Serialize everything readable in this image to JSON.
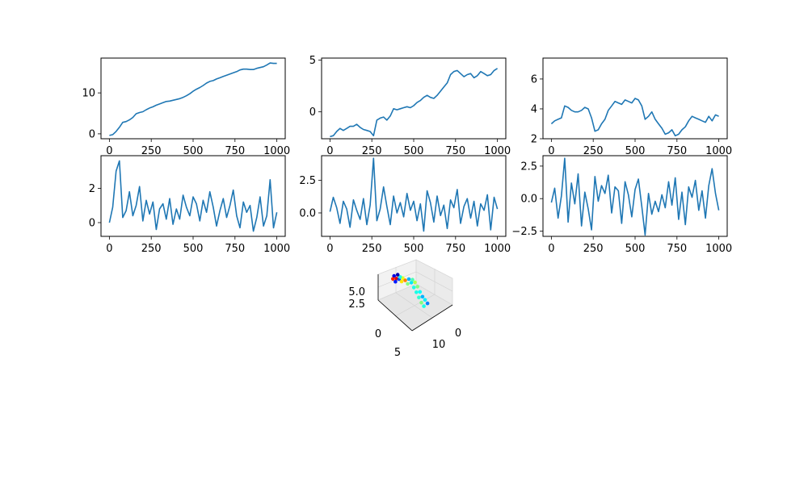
{
  "figure": {
    "background": "#ffffff",
    "line_color": "#1f77b4"
  },
  "chart_data": [
    {
      "type": "line",
      "name": "",
      "color": "#1f77b4",
      "grid": false,
      "xlim": [
        -50,
        1050
      ],
      "ylim": [
        -1.2,
        18.5
      ],
      "x_ticks": [
        0,
        250,
        500,
        750,
        1000
      ],
      "y_ticks": [
        0,
        10
      ],
      "x_tick_labels": [
        "0",
        "250",
        "500",
        "750",
        "1000"
      ],
      "y_tick_labels": [
        "0",
        "10"
      ],
      "x": [
        0,
        20,
        40,
        60,
        80,
        100,
        120,
        140,
        160,
        180,
        200,
        220,
        240,
        260,
        280,
        300,
        320,
        340,
        360,
        380,
        400,
        420,
        440,
        460,
        480,
        500,
        520,
        540,
        560,
        580,
        600,
        620,
        640,
        660,
        680,
        700,
        720,
        740,
        760,
        780,
        800,
        820,
        840,
        860,
        880,
        900,
        920,
        940,
        960,
        980,
        1000
      ],
      "y": [
        -0.4,
        -0.2,
        0.6,
        1.6,
        2.8,
        3.0,
        3.4,
        4.0,
        4.9,
        5.2,
        5.4,
        5.9,
        6.3,
        6.6,
        7.0,
        7.3,
        7.6,
        7.9,
        8.0,
        8.2,
        8.4,
        8.6,
        8.9,
        9.3,
        9.8,
        10.4,
        10.9,
        11.3,
        11.8,
        12.4,
        12.8,
        13.0,
        13.4,
        13.7,
        14.0,
        14.3,
        14.6,
        14.9,
        15.2,
        15.6,
        15.8,
        15.8,
        15.7,
        15.7,
        16.0,
        16.2,
        16.4,
        16.8,
        17.3,
        17.2,
        17.2
      ]
    },
    {
      "type": "line",
      "name": "",
      "color": "#1f77b4",
      "grid": false,
      "xlim": [
        -50,
        1050
      ],
      "ylim": [
        -2.6,
        5.2
      ],
      "x_ticks": [
        0,
        250,
        500,
        750,
        1000
      ],
      "y_ticks": [
        0,
        5
      ],
      "x_tick_labels": [
        "0",
        "250",
        "500",
        "750",
        "1000"
      ],
      "y_tick_labels": [
        "0",
        "5"
      ],
      "x": [
        0,
        20,
        40,
        60,
        80,
        100,
        120,
        140,
        160,
        180,
        200,
        220,
        240,
        260,
        280,
        300,
        320,
        340,
        360,
        380,
        400,
        420,
        440,
        460,
        480,
        500,
        520,
        540,
        560,
        580,
        600,
        620,
        640,
        660,
        680,
        700,
        720,
        740,
        760,
        780,
        800,
        820,
        840,
        860,
        880,
        900,
        920,
        940,
        960,
        980,
        1000
      ],
      "y": [
        -2.4,
        -2.3,
        -1.9,
        -1.6,
        -1.8,
        -1.6,
        -1.4,
        -1.4,
        -1.2,
        -1.5,
        -1.7,
        -1.8,
        -1.9,
        -2.3,
        -0.8,
        -0.6,
        -0.5,
        -0.8,
        -0.4,
        0.3,
        0.2,
        0.3,
        0.4,
        0.5,
        0.4,
        0.6,
        0.9,
        1.1,
        1.4,
        1.6,
        1.4,
        1.3,
        1.6,
        2.0,
        2.4,
        2.8,
        3.6,
        3.9,
        4.0,
        3.7,
        3.4,
        3.6,
        3.7,
        3.3,
        3.5,
        3.9,
        3.7,
        3.5,
        3.6,
        4.0,
        4.2
      ]
    },
    {
      "type": "line",
      "name": "",
      "color": "#1f77b4",
      "grid": false,
      "xlim": [
        -50,
        1050
      ],
      "ylim": [
        2.0,
        7.4
      ],
      "x_ticks": [
        0,
        250,
        500,
        750,
        1000
      ],
      "y_ticks": [
        2,
        4,
        6
      ],
      "x_tick_labels": [
        "0",
        "250",
        "500",
        "750",
        "1000"
      ],
      "y_tick_labels": [
        "2",
        "4",
        "6"
      ],
      "x": [
        0,
        20,
        40,
        60,
        80,
        100,
        120,
        140,
        160,
        180,
        200,
        220,
        240,
        260,
        280,
        300,
        320,
        340,
        360,
        380,
        400,
        420,
        440,
        460,
        480,
        500,
        520,
        540,
        560,
        580,
        600,
        620,
        640,
        660,
        680,
        700,
        720,
        740,
        760,
        780,
        800,
        820,
        840,
        860,
        880,
        900,
        920,
        940,
        960,
        980,
        1000
      ],
      "y": [
        3.0,
        3.2,
        3.3,
        3.4,
        4.2,
        4.1,
        3.9,
        3.8,
        3.8,
        3.9,
        4.1,
        4.0,
        3.4,
        2.5,
        2.6,
        3.0,
        3.3,
        3.9,
        4.2,
        4.5,
        4.4,
        4.3,
        4.6,
        4.5,
        4.4,
        4.7,
        4.6,
        4.2,
        3.3,
        3.5,
        3.8,
        3.3,
        3.0,
        2.7,
        2.3,
        2.4,
        2.6,
        2.2,
        2.3,
        2.6,
        2.8,
        3.2,
        3.5,
        3.4,
        3.3,
        3.2,
        3.1,
        3.5,
        3.2,
        3.6,
        3.5
      ]
    },
    {
      "type": "line",
      "name": "",
      "color": "#1f77b4",
      "grid": false,
      "xlim": [
        -50,
        1050
      ],
      "ylim": [
        -0.8,
        3.9
      ],
      "x_ticks": [
        0,
        250,
        500,
        750,
        1000
      ],
      "y_ticks": [
        0,
        2
      ],
      "x_tick_labels": [
        "0",
        "250",
        "500",
        "750",
        "1000"
      ],
      "y_tick_labels": [
        "0",
        "2"
      ],
      "x": [
        0,
        20,
        40,
        60,
        80,
        100,
        120,
        140,
        160,
        180,
        200,
        220,
        240,
        260,
        280,
        300,
        320,
        340,
        360,
        380,
        400,
        420,
        440,
        460,
        480,
        500,
        520,
        540,
        560,
        580,
        600,
        620,
        640,
        660,
        680,
        700,
        720,
        740,
        760,
        780,
        800,
        820,
        840,
        860,
        880,
        900,
        920,
        940,
        960,
        980,
        1000
      ],
      "y": [
        0.0,
        0.9,
        3.0,
        3.6,
        0.3,
        0.7,
        1.8,
        0.4,
        1.0,
        2.1,
        0.1,
        1.3,
        0.5,
        1.2,
        -0.4,
        0.8,
        1.1,
        0.2,
        1.4,
        -0.1,
        0.8,
        0.2,
        1.6,
        0.9,
        0.4,
        1.5,
        1.1,
        0.1,
        1.3,
        0.6,
        1.8,
        0.9,
        -0.2,
        0.7,
        1.4,
        0.3,
        1.0,
        1.9,
        0.4,
        -0.3,
        1.2,
        0.6,
        1.0,
        -0.5,
        0.3,
        1.5,
        -0.2,
        0.4,
        2.5,
        -0.3,
        0.6
      ]
    },
    {
      "type": "line",
      "name": "",
      "color": "#1f77b4",
      "grid": false,
      "xlim": [
        -50,
        1050
      ],
      "ylim": [
        -1.8,
        4.4
      ],
      "x_ticks": [
        0,
        250,
        500,
        750,
        1000
      ],
      "y_ticks": [
        0.0,
        2.5
      ],
      "x_tick_labels": [
        "0",
        "250",
        "500",
        "750",
        "1000"
      ],
      "y_tick_labels": [
        "0.0",
        "2.5"
      ],
      "x": [
        0,
        20,
        40,
        60,
        80,
        100,
        120,
        140,
        160,
        180,
        200,
        220,
        240,
        260,
        280,
        300,
        320,
        340,
        360,
        380,
        400,
        420,
        440,
        460,
        480,
        500,
        520,
        540,
        560,
        580,
        600,
        620,
        640,
        660,
        680,
        700,
        720,
        740,
        760,
        780,
        800,
        820,
        840,
        860,
        880,
        900,
        920,
        940,
        960,
        980,
        1000
      ],
      "y": [
        0.1,
        1.2,
        0.4,
        -0.8,
        0.9,
        0.3,
        -1.1,
        1.0,
        0.2,
        -0.5,
        1.1,
        -0.9,
        0.6,
        4.2,
        -0.6,
        0.3,
        2.0,
        0.5,
        -0.9,
        1.3,
        0.0,
        0.8,
        -0.3,
        1.5,
        0.2,
        0.9,
        -0.6,
        0.7,
        -1.4,
        1.7,
        0.8,
        -0.7,
        1.3,
        -0.2,
        0.6,
        -1.2,
        1.0,
        0.4,
        1.8,
        -0.8,
        0.5,
        1.1,
        -0.4,
        0.9,
        -1.0,
        0.7,
        0.2,
        1.4,
        -1.3,
        1.2,
        0.3
      ]
    },
    {
      "type": "line",
      "name": "",
      "color": "#1f77b4",
      "grid": false,
      "xlim": [
        -50,
        1050
      ],
      "ylim": [
        -2.9,
        3.3
      ],
      "x_ticks": [
        0,
        250,
        500,
        750,
        1000
      ],
      "y_ticks": [
        -2.5,
        0.0,
        2.5
      ],
      "x_tick_labels": [
        "0",
        "250",
        "500",
        "750",
        "1000"
      ],
      "y_tick_labels": [
        "−2.5",
        "0.0",
        "2.5"
      ],
      "x": [
        0,
        20,
        40,
        60,
        80,
        100,
        120,
        140,
        160,
        180,
        200,
        220,
        240,
        260,
        280,
        300,
        320,
        340,
        360,
        380,
        400,
        420,
        440,
        460,
        480,
        500,
        520,
        540,
        560,
        580,
        600,
        620,
        640,
        660,
        680,
        700,
        720,
        740,
        760,
        780,
        800,
        820,
        840,
        860,
        880,
        900,
        920,
        940,
        960,
        980,
        1000
      ],
      "y": [
        -0.3,
        0.8,
        -1.5,
        0.2,
        3.1,
        -1.8,
        1.2,
        -0.4,
        1.9,
        -2.1,
        0.5,
        -0.8,
        -2.4,
        1.7,
        -0.2,
        1.0,
        0.4,
        1.8,
        -1.1,
        0.9,
        0.6,
        -1.9,
        1.3,
        0.3,
        -1.4,
        0.7,
        1.5,
        -0.6,
        -2.8,
        0.4,
        -1.2,
        -0.2,
        -1.0,
        0.3,
        -0.7,
        1.3,
        -0.5,
        1.6,
        -1.6,
        0.5,
        -2.0,
        0.9,
        0.1,
        1.4,
        -0.9,
        0.6,
        -1.5,
        1.0,
        2.3,
        0.4,
        -0.9
      ]
    },
    {
      "type": "scatter3d",
      "name": "",
      "colormap": "jet",
      "grid": true,
      "x_ticks": [
        0,
        10
      ],
      "y_ticks": [
        0,
        5
      ],
      "z_ticks": [
        2.5,
        5.0
      ],
      "x_tick_labels": [
        "0",
        "10"
      ],
      "y_tick_labels": [
        "0",
        "5"
      ],
      "z_tick_labels": [
        "2.5",
        "5.0"
      ],
      "xlim": [
        -2,
        14
      ],
      "ylim": [
        -1,
        7
      ],
      "zlim": [
        1,
        7
      ],
      "points": [
        [
          2,
          3,
          5.2,
          0.1
        ],
        [
          3,
          3,
          5.0,
          0.9
        ],
        [
          4,
          3,
          5.3,
          0.2
        ],
        [
          4,
          4,
          5.1,
          0.6
        ],
        [
          3,
          4,
          4.9,
          0.4
        ],
        [
          5,
          4,
          5.0,
          0.75
        ],
        [
          5,
          5,
          4.8,
          0.3
        ],
        [
          6,
          4,
          4.6,
          0.5
        ],
        [
          6,
          5,
          4.4,
          0.35
        ],
        [
          5,
          6,
          4.2,
          0.45
        ],
        [
          6,
          6,
          4.0,
          0.55
        ],
        [
          7,
          5,
          3.7,
          0.4
        ],
        [
          7,
          6,
          3.4,
          0.5
        ],
        [
          8,
          5,
          3.0,
          0.4
        ],
        [
          8,
          6,
          2.6,
          0.38
        ],
        [
          9,
          5,
          2.2,
          0.42
        ],
        [
          9,
          6,
          1.9,
          0.3
        ],
        [
          10,
          6,
          1.6,
          0.36
        ],
        [
          10,
          5,
          1.4,
          0.5
        ],
        [
          11,
          6,
          1.2,
          0.25
        ],
        [
          11,
          5,
          1.0,
          0.4
        ],
        [
          3,
          2,
          5.4,
          0.85
        ],
        [
          4,
          2,
          5.2,
          0.15
        ],
        [
          2,
          4,
          5.0,
          0.05
        ],
        [
          5,
          3,
          5.2,
          0.65
        ]
      ]
    }
  ]
}
